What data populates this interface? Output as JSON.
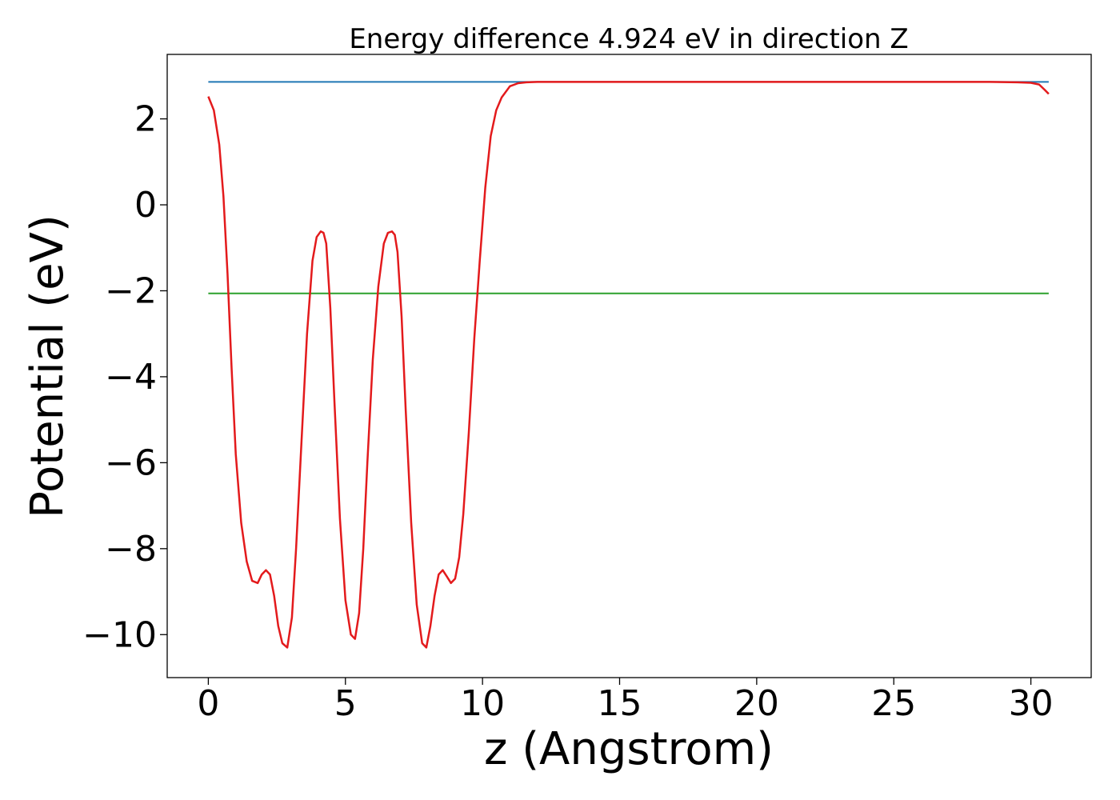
{
  "colors": {
    "background": "#ffffff",
    "axes": "#000000",
    "vacuum_level": "#1f77b4",
    "fermi_level": "#2ca02c",
    "potential": "#e31a1c"
  },
  "chart_data": {
    "type": "line",
    "title": "Energy difference 4.924 eV in direction Z",
    "xlabel": "z (Angstrom)",
    "ylabel": "Potential (eV)",
    "xlim": [
      -1.5,
      32.2
    ],
    "ylim": [
      -11.0,
      3.5
    ],
    "xticks": [
      0,
      5,
      10,
      15,
      20,
      25,
      30
    ],
    "yticks": [
      -10,
      -8,
      -6,
      -4,
      -2,
      0,
      2
    ],
    "xtick_labels": [
      "0",
      "5",
      "10",
      "15",
      "20",
      "25",
      "30"
    ],
    "ytick_labels": [
      "−10",
      "−8",
      "−6",
      "−4",
      "−2",
      "0",
      "2"
    ],
    "grid": false,
    "legend": "none",
    "series": [
      {
        "color": "#1f77b4",
        "x": [
          0,
          30.65
        ],
        "y": [
          2.86,
          2.86
        ]
      },
      {
        "color": "#2ca02c",
        "x": [
          0,
          30.65
        ],
        "y": [
          -2.06,
          -2.06
        ]
      },
      {
        "color": "#e31a1c",
        "x": [
          0,
          0.2,
          0.4,
          0.55,
          0.7,
          0.85,
          1.0,
          1.2,
          1.4,
          1.6,
          1.8,
          1.95,
          2.1,
          2.25,
          2.4,
          2.55,
          2.7,
          2.88,
          3.05,
          3.2,
          3.4,
          3.6,
          3.8,
          3.95,
          4.1,
          4.2,
          4.3,
          4.45,
          4.6,
          4.8,
          5.0,
          5.2,
          5.35,
          5.5,
          5.65,
          5.8,
          6.0,
          6.2,
          6.4,
          6.55,
          6.7,
          6.8,
          6.9,
          7.05,
          7.2,
          7.4,
          7.6,
          7.8,
          7.95,
          8.1,
          8.25,
          8.4,
          8.55,
          8.7,
          8.85,
          9.0,
          9.15,
          9.3,
          9.5,
          9.7,
          9.9,
          10.1,
          10.3,
          10.5,
          10.7,
          11.0,
          11.3,
          11.6,
          12.0,
          13.0,
          15.0,
          20.0,
          25.0,
          28.5,
          29.5,
          30.0,
          30.3,
          30.5,
          30.65
        ],
        "y": [
          2.52,
          2.2,
          1.4,
          0.2,
          -1.6,
          -3.8,
          -5.8,
          -7.4,
          -8.3,
          -8.75,
          -8.8,
          -8.6,
          -8.5,
          -8.6,
          -9.1,
          -9.8,
          -10.2,
          -10.3,
          -9.6,
          -8.0,
          -5.5,
          -3.0,
          -1.3,
          -0.75,
          -0.62,
          -0.65,
          -0.9,
          -2.4,
          -4.6,
          -7.3,
          -9.2,
          -10.0,
          -10.1,
          -9.5,
          -8.0,
          -6.0,
          -3.6,
          -1.9,
          -0.9,
          -0.65,
          -0.62,
          -0.7,
          -1.1,
          -2.6,
          -4.8,
          -7.4,
          -9.3,
          -10.2,
          -10.3,
          -9.8,
          -9.1,
          -8.6,
          -8.5,
          -8.65,
          -8.8,
          -8.7,
          -8.2,
          -7.2,
          -5.3,
          -3.1,
          -1.3,
          0.4,
          1.6,
          2.2,
          2.5,
          2.76,
          2.83,
          2.85,
          2.86,
          2.86,
          2.86,
          2.86,
          2.86,
          2.86,
          2.85,
          2.84,
          2.8,
          2.68,
          2.58
        ]
      }
    ]
  }
}
